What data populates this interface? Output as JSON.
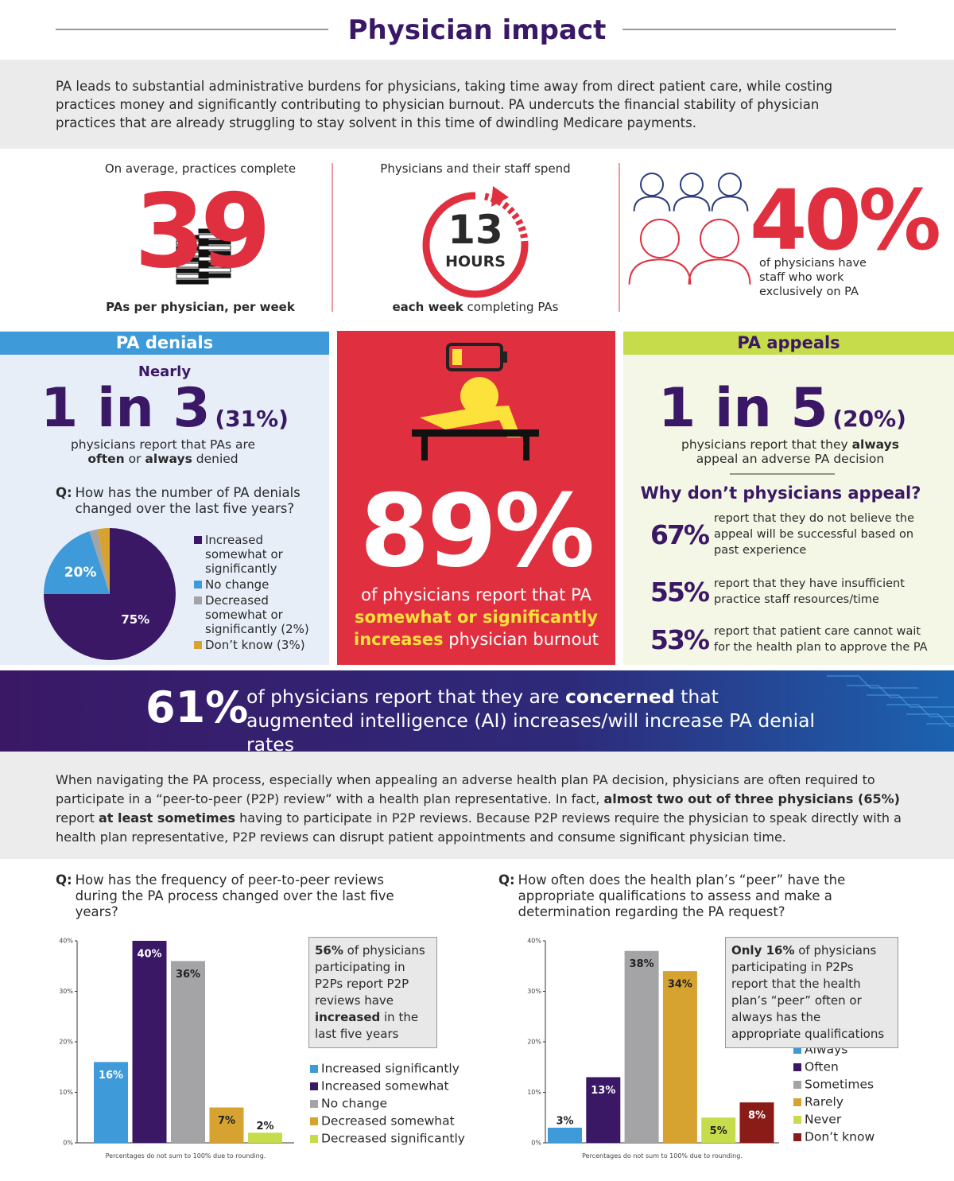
{
  "header": {
    "title": "Physician impact"
  },
  "intro": "PA leads to substantial administrative burdens for physicians, taking time away from direct patient care, while costing practices money and significantly contributing to physician burnout. PA undercuts the financial stability of physician practices that are already struggling to stay solvent in this time of dwindling Medicare payments.",
  "stats": [
    {
      "lead": "On average, practices complete",
      "figure": "39",
      "caption": [
        {
          "bold": "PAs per physician, per week"
        }
      ]
    },
    {
      "lead": "Physicians and their staff spend",
      "figure": "13",
      "unit": "HOURS",
      "caption": [
        {
          "bold": "each week"
        },
        " completing PAs"
      ]
    },
    {
      "figure": "40%",
      "caption": "of physicians have staff who work exclusively on PA"
    }
  ],
  "denials": {
    "heading": "PA denials",
    "lead": "Nearly",
    "figure": "1 in 3",
    "figure_note": "(31%)",
    "caption": [
      "physicians report that PAs are ",
      {
        "bold": "often"
      },
      " or ",
      {
        "bold": "always"
      },
      " denied"
    ]
  },
  "burnout": {
    "figure": "89%",
    "caption": [
      "of physicians report that PA ",
      {
        "bold": "somewhat or significantly increases"
      },
      " physician burnout"
    ]
  },
  "appeals": {
    "heading": "PA appeals",
    "figure": "1 in 5",
    "figure_note": "(20%)",
    "caption": [
      "physicians report that they ",
      {
        "bold": "always"
      },
      " appeal an adverse PA decision"
    ],
    "subheading": "Why don’t physicians appeal?",
    "reasons": [
      {
        "figure": "67%",
        "text": "report that they do not believe the appeal will be successful based on past experience"
      },
      {
        "figure": "55%",
        "text": "report that they have insufficient practice staff resources/time"
      },
      {
        "figure": "53%",
        "text": "report that patient care cannot wait for the health plan to approve the PA"
      }
    ]
  },
  "ai": {
    "figure": "61%",
    "text": [
      "of physicians report that they are ",
      {
        "bold": "concerned"
      },
      " that augmented intelligence (AI) increases/will increase PA denial rates"
    ]
  },
  "p2p": [
    "When navigating the PA process, especially when appealing an adverse health plan PA decision, physicians are often required to participate in a “peer-to-peer (P2P) review” with a health plan representative. In fact, ",
    {
      "bold": "almost two out of three physicians (65%)"
    },
    " report ",
    {
      "bold": "at least sometimes"
    },
    " having to participate in P2P reviews. Because P2P reviews require the physician to speak directly with a health plan representative, P2P reviews can disrupt patient appointments and consume significant physician time."
  ],
  "chart_data": [
    {
      "type": "pie",
      "question_label": "Q:",
      "title": "How has the number of PA denials changed over the last five years?",
      "categories": [
        "Increased somewhat or significantly",
        "No change",
        "Decreased somewhat or significantly (2%)",
        "Don’t know (3%)"
      ],
      "values": [
        75,
        20,
        2,
        3
      ],
      "value_labels": [
        "75%",
        "20%",
        null,
        null
      ],
      "colors": [
        "#3a1866",
        "#3e9ad8",
        "#a4a4a6",
        "#d6a230"
      ]
    },
    {
      "type": "bar",
      "question_label": "Q:",
      "title": "How has the frequency of peer-to-peer reviews during the PA process changed over the last five years?",
      "categories": [
        "Increased significantly",
        "Increased somewhat",
        "No change",
        "Decreased somewhat",
        "Decreased significantly"
      ],
      "values": [
        16,
        40,
        36,
        7,
        2
      ],
      "value_labels": [
        "16%",
        "40%",
        "36%",
        "7%",
        "2%"
      ],
      "colors": [
        "#3e9ad8",
        "#3a1866",
        "#a4a4a6",
        "#d6a230",
        "#c7dc4a"
      ],
      "ylim": [
        0,
        40
      ],
      "yticks": [
        {
          "value": 0,
          "label": "0%"
        },
        {
          "value": 10,
          "label": "10%"
        },
        {
          "value": 20,
          "label": "20%"
        },
        {
          "value": 30,
          "label": "30%"
        },
        {
          "value": 40,
          "label": "40%"
        }
      ],
      "annotation": [
        {
          "bold": "56%"
        },
        " of physicians participating in P2Ps report P2P reviews have ",
        {
          "bold": "increased"
        },
        " in the last five years"
      ],
      "footnote": "Percentages do not sum to 100% due to rounding."
    },
    {
      "type": "bar",
      "question_label": "Q:",
      "title": "How often does the health plan’s “peer” have the appropriate qualifications to assess and make a determination regarding the PA request?",
      "categories": [
        "Always",
        "Often",
        "Sometimes",
        "Rarely",
        "Never",
        "Don’t know"
      ],
      "values": [
        3,
        13,
        38,
        34,
        5,
        8
      ],
      "value_labels": [
        "3%",
        "13%",
        "38%",
        "34%",
        "5%",
        "8%"
      ],
      "colors": [
        "#3e9ad8",
        "#3a1866",
        "#a4a4a6",
        "#d6a230",
        "#c7dc4a",
        "#8a1c17"
      ],
      "ylim": [
        0,
        40
      ],
      "yticks": [
        {
          "value": 0,
          "label": "0%"
        },
        {
          "value": 10,
          "label": "10%"
        },
        {
          "value": 20,
          "label": "20%"
        },
        {
          "value": 30,
          "label": "30%"
        },
        {
          "value": 40,
          "label": "40%"
        }
      ],
      "annotation": [
        {
          "bold": "Only 16%"
        },
        " of physicians participating in P2Ps report that the health plan’s “peer” often or always has the appropriate qualifications"
      ],
      "footnote": "Percentages do not sum to 100% due to rounding."
    }
  ]
}
